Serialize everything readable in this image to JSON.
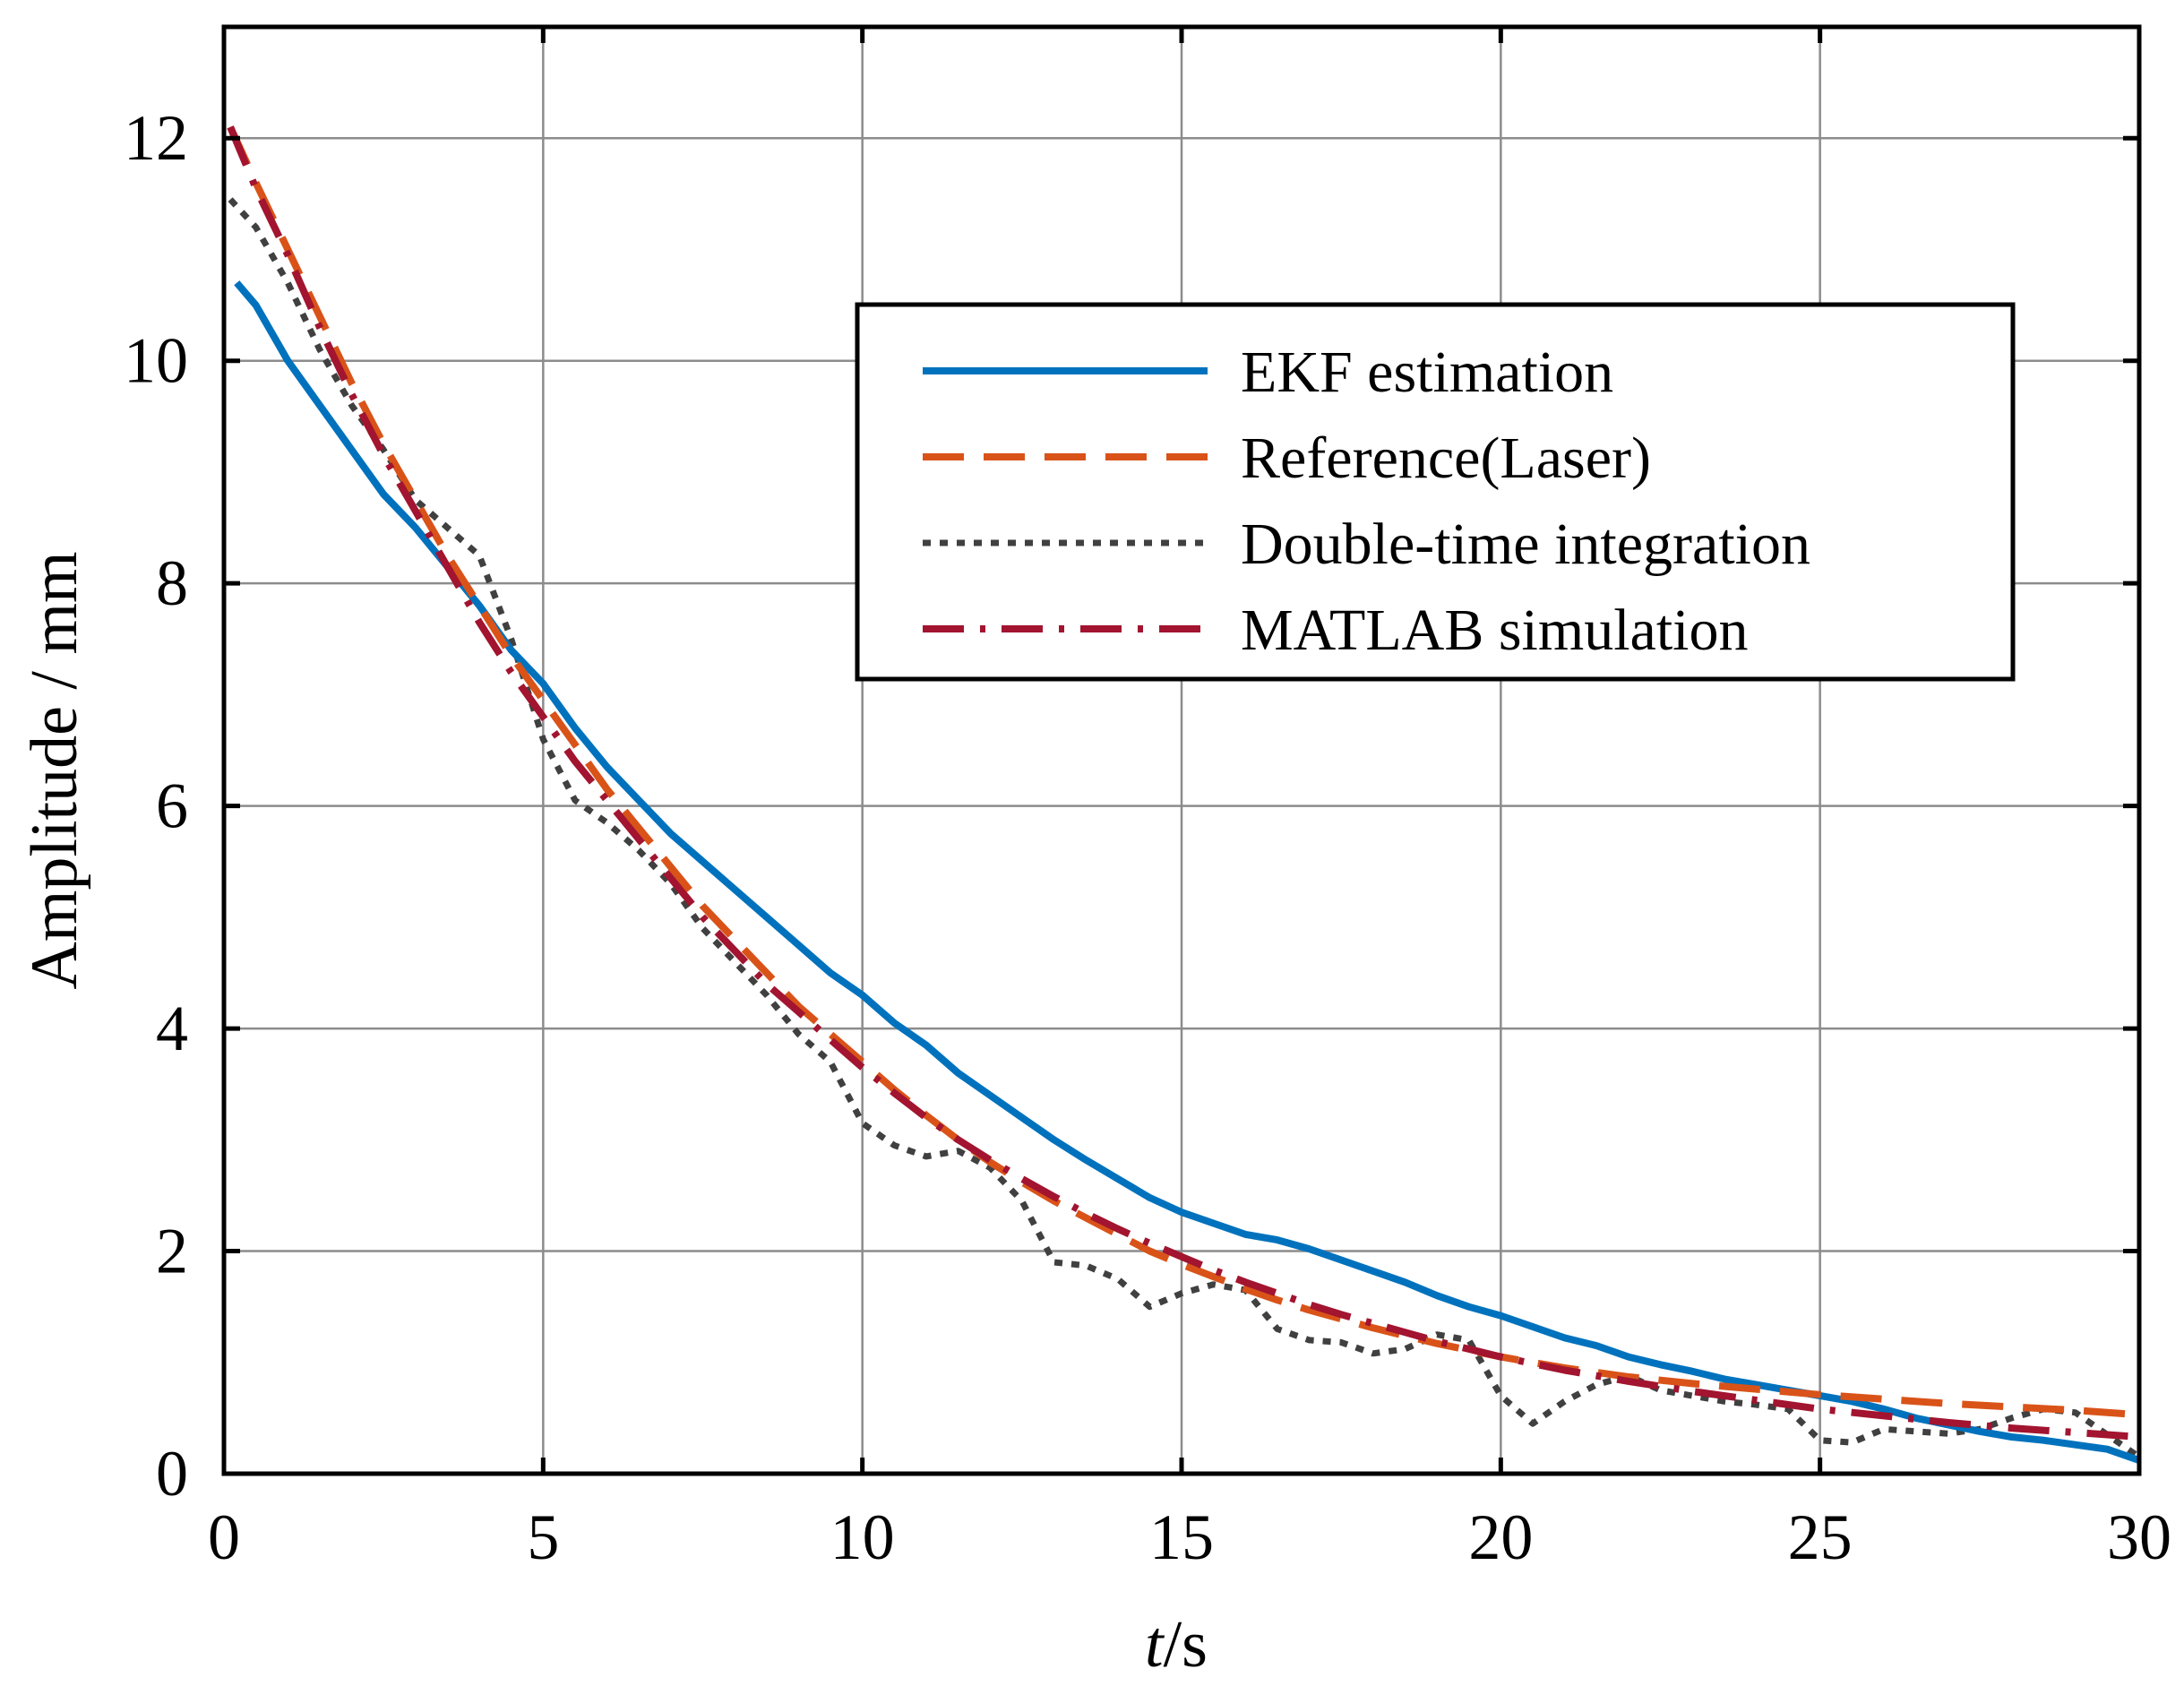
{
  "chart_data": {
    "type": "line",
    "title": "",
    "xlabel_italic": "t",
    "xlabel_rest": "/s",
    "ylabel": "Amplitude / mm",
    "xlim": [
      0,
      30
    ],
    "ylim": [
      0,
      13
    ],
    "xticks": [
      0,
      5,
      10,
      15,
      20,
      25,
      30
    ],
    "yticks": [
      0,
      2,
      4,
      6,
      8,
      10,
      12
    ],
    "xtick_labels": [
      "0",
      "5",
      "10",
      "15",
      "20",
      "25",
      "30"
    ],
    "ytick_labels": [
      "0",
      "2",
      "4",
      "6",
      "8",
      "10",
      "12"
    ],
    "grid": true,
    "legend_position": "upper-right",
    "series": [
      {
        "name": "EKF estimation",
        "color": "#0072BD",
        "style": "solid",
        "x": [
          0.2,
          0.5,
          1,
          1.5,
          2,
          2.5,
          3,
          3.5,
          4,
          4.5,
          5,
          5.5,
          6,
          6.5,
          7,
          7.5,
          8,
          8.5,
          9,
          9.5,
          10,
          10.5,
          11,
          11.5,
          12,
          12.5,
          13,
          13.5,
          14,
          14.5,
          15,
          15.5,
          16,
          16.5,
          17,
          17.5,
          18,
          18.5,
          19,
          19.5,
          20,
          20.5,
          21,
          21.5,
          22,
          22.5,
          23,
          23.5,
          24,
          24.5,
          25,
          25.5,
          26,
          26.5,
          27,
          27.5,
          28,
          28.5,
          29,
          29.5,
          30
        ],
        "y": [
          10.7,
          10.5,
          10.0,
          9.6,
          9.2,
          8.8,
          8.5,
          8.15,
          7.8,
          7.4,
          7.1,
          6.7,
          6.35,
          6.05,
          5.75,
          5.5,
          5.25,
          5.0,
          4.75,
          4.5,
          4.3,
          4.05,
          3.85,
          3.6,
          3.4,
          3.2,
          3.0,
          2.82,
          2.65,
          2.48,
          2.35,
          2.25,
          2.15,
          2.1,
          2.02,
          1.92,
          1.82,
          1.72,
          1.6,
          1.5,
          1.42,
          1.32,
          1.22,
          1.15,
          1.05,
          0.98,
          0.92,
          0.85,
          0.8,
          0.75,
          0.7,
          0.65,
          0.58,
          0.5,
          0.44,
          0.38,
          0.33,
          0.3,
          0.26,
          0.22,
          0.12
        ]
      },
      {
        "name": "Reference(Laser)",
        "color": "#D95319",
        "style": "dashed",
        "x": [
          0.1,
          0.5,
          1,
          1.5,
          2,
          2.5,
          3,
          3.5,
          4,
          4.5,
          5,
          5.5,
          6,
          6.5,
          7,
          7.5,
          8,
          8.5,
          9,
          9.5,
          10,
          10.5,
          11,
          11.5,
          12,
          12.5,
          13,
          13.5,
          14,
          14.5,
          15,
          15.5,
          16,
          16.5,
          17,
          17.5,
          18,
          18.5,
          19,
          19.5,
          20,
          21,
          22,
          23,
          24,
          25,
          26,
          27,
          28,
          29,
          30
        ],
        "y": [
          12.1,
          11.6,
          11.0,
          10.4,
          9.8,
          9.25,
          8.75,
          8.25,
          7.8,
          7.35,
          6.95,
          6.55,
          6.15,
          5.8,
          5.45,
          5.1,
          4.8,
          4.5,
          4.2,
          3.95,
          3.7,
          3.45,
          3.22,
          3.0,
          2.8,
          2.62,
          2.45,
          2.3,
          2.15,
          2.0,
          1.88,
          1.77,
          1.66,
          1.56,
          1.47,
          1.39,
          1.31,
          1.24,
          1.17,
          1.11,
          1.05,
          0.95,
          0.87,
          0.81,
          0.76,
          0.71,
          0.67,
          0.63,
          0.6,
          0.57,
          0.53
        ]
      },
      {
        "name": "Double-time integration",
        "color": "#404040",
        "style": "dotted",
        "x": [
          0.1,
          0.5,
          1,
          1.5,
          2,
          2.5,
          3,
          3.5,
          4,
          4.5,
          5,
          5.5,
          6,
          6.5,
          7,
          7.5,
          8,
          8.5,
          9,
          9.5,
          10,
          10.5,
          11,
          11.5,
          12,
          12.5,
          13,
          13.5,
          14,
          14.5,
          15,
          15.5,
          16,
          16.5,
          17,
          17.5,
          18,
          18.5,
          19,
          19.5,
          20,
          20.5,
          21,
          21.5,
          22,
          22.5,
          23,
          23.5,
          24,
          24.5,
          25,
          25.5,
          26,
          26.5,
          27,
          27.5,
          28,
          28.5,
          29,
          29.5,
          30
        ],
        "y": [
          11.45,
          11.2,
          10.7,
          10.1,
          9.6,
          9.2,
          8.75,
          8.5,
          8.25,
          7.5,
          6.6,
          6.05,
          5.85,
          5.6,
          5.3,
          4.9,
          4.6,
          4.3,
          3.95,
          3.7,
          3.15,
          2.95,
          2.85,
          2.9,
          2.75,
          2.45,
          1.9,
          1.87,
          1.75,
          1.5,
          1.62,
          1.7,
          1.65,
          1.3,
          1.2,
          1.18,
          1.08,
          1.12,
          1.25,
          1.2,
          0.7,
          0.45,
          0.65,
          0.8,
          0.88,
          0.75,
          0.7,
          0.65,
          0.62,
          0.58,
          0.3,
          0.28,
          0.4,
          0.38,
          0.36,
          0.4,
          0.5,
          0.58,
          0.55,
          0.35,
          0.15
        ]
      },
      {
        "name": "MATLAB simulation",
        "color": "#A2142F",
        "style": "dashdot",
        "x": [
          0.1,
          0.5,
          1,
          1.5,
          2,
          2.5,
          3,
          3.5,
          4,
          4.5,
          5,
          5.5,
          6,
          6.5,
          7,
          7.5,
          8,
          8.5,
          9,
          9.5,
          10,
          10.5,
          11,
          11.5,
          12,
          12.5,
          13,
          13.5,
          14,
          14.5,
          15,
          15.5,
          16,
          16.5,
          17,
          17.5,
          18,
          18.5,
          19,
          19.5,
          20,
          21,
          22,
          23,
          24,
          25,
          26,
          27,
          28,
          29,
          30
        ],
        "y": [
          12.1,
          11.55,
          10.95,
          10.3,
          9.7,
          9.15,
          8.65,
          8.15,
          7.65,
          7.2,
          6.8,
          6.4,
          6.05,
          5.7,
          5.35,
          5.0,
          4.7,
          4.4,
          4.15,
          3.9,
          3.65,
          3.42,
          3.2,
          3.0,
          2.82,
          2.65,
          2.49,
          2.34,
          2.2,
          2.07,
          1.95,
          1.83,
          1.72,
          1.62,
          1.52,
          1.43,
          1.35,
          1.27,
          1.19,
          1.12,
          1.05,
          0.93,
          0.83,
          0.74,
          0.66,
          0.58,
          0.52,
          0.46,
          0.41,
          0.37,
          0.33
        ]
      }
    ]
  }
}
